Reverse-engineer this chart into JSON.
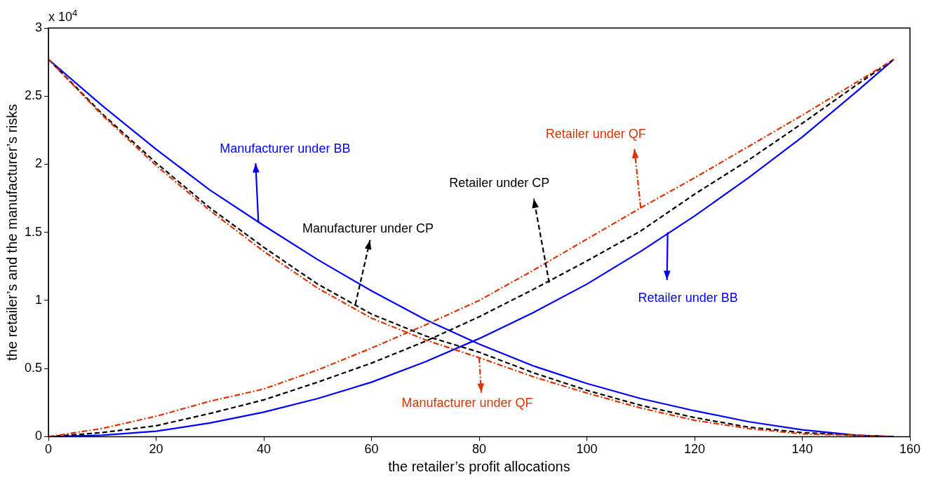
{
  "chart_data": {
    "type": "line",
    "xlabel": "the retailer’s profit allocations",
    "ylabel": "the retailer’s and the manufacturer’s risks",
    "x": [
      0,
      10,
      20,
      30,
      40,
      50,
      60,
      70,
      80,
      90,
      100,
      110,
      120,
      130,
      140,
      150,
      157
    ],
    "xlim": [
      0,
      160
    ],
    "xticks": [
      0,
      20,
      40,
      60,
      80,
      100,
      120,
      140,
      160
    ],
    "ylim": [
      0,
      3
    ],
    "yticks": [
      0,
      0.5,
      1,
      1.5,
      2,
      2.5,
      3
    ],
    "grid": false,
    "legend": false,
    "marker": "none",
    "series": [
      {
        "color": "#0000ff",
        "line_style": "solid",
        "values": [
          2.77,
          2.43,
          2.11,
          1.81,
          1.55,
          1.3,
          1.07,
          0.86,
          0.68,
          0.52,
          0.39,
          0.28,
          0.19,
          0.11,
          0.05,
          0.01,
          0
        ]
      },
      {
        "color": "#0000ff",
        "line_style": "solid",
        "values": [
          0,
          0.01,
          0.04,
          0.1,
          0.18,
          0.28,
          0.4,
          0.55,
          0.72,
          0.91,
          1.12,
          1.36,
          1.62,
          1.9,
          2.2,
          2.53,
          2.77
        ]
      },
      {
        "color": "#000000",
        "line_style": "dashed",
        "values": [
          2.77,
          2.37,
          2.01,
          1.68,
          1.39,
          1.12,
          0.9,
          0.74,
          0.62,
          0.47,
          0.34,
          0.23,
          0.14,
          0.07,
          0.03,
          0.01,
          0
        ]
      },
      {
        "color": "#000000",
        "line_style": "dashed",
        "values": [
          0,
          0.03,
          0.08,
          0.17,
          0.27,
          0.4,
          0.54,
          0.7,
          0.88,
          1.08,
          1.29,
          1.51,
          1.78,
          2.03,
          2.3,
          2.58,
          2.77
        ]
      },
      {
        "color": "#dd3300",
        "line_style": "dashdot",
        "values": [
          2.77,
          2.36,
          1.99,
          1.66,
          1.36,
          1.09,
          0.87,
          0.71,
          0.58,
          0.44,
          0.32,
          0.21,
          0.12,
          0.06,
          0.02,
          0.01,
          0
        ]
      },
      {
        "color": "#dd3300",
        "line_style": "dashdot",
        "values": [
          0,
          0.06,
          0.15,
          0.26,
          0.35,
          0.49,
          0.65,
          0.82,
          1,
          1.22,
          1.45,
          1.68,
          1.9,
          2.13,
          2.36,
          2.6,
          2.77
        ]
      }
    ],
    "annotations": [
      "x 10$^{4}$",
      {
        "text": "Manufacturer under BB",
        "x": 39,
        "y": 1.57
      },
      {
        "text": "Manufacturer under CP",
        "x": 57,
        "y": 0.97
      },
      {
        "text": "Retailer under CP",
        "x": 93,
        "y": 1.13
      },
      {
        "text": "Retailer under QF",
        "x": 110,
        "y": 1.68
      },
      {
        "text": "Retailer under BB",
        "x": 115,
        "y": 1.5
      },
      {
        "text": "Manufacturer under QF",
        "x": 80,
        "y": 0.58
      }
    ]
  }
}
